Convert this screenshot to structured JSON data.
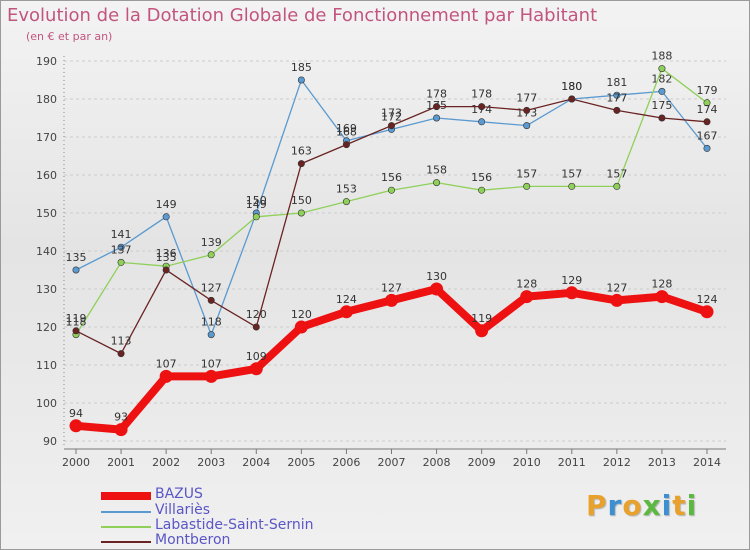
{
  "title": "Evolution de la Dotation Globale de Fonctionnement par Habitant",
  "subtitle": "(en € et par an)",
  "logo": {
    "text": "Proxiti",
    "colors": [
      "#e8a12c",
      "#3c8fd0",
      "#e8a12c",
      "#5cb840",
      "#3c8fd0",
      "#e8a12c",
      "#5cb840"
    ]
  },
  "colors": {
    "title": "#c2557e",
    "grid": "#cccccc",
    "legend_text": "#5a56c6",
    "axis_text": "#444444"
  },
  "chart_data": {
    "type": "line",
    "title": "Evolution de la Dotation Globale de Fonctionnement par Habitant",
    "subtitle": "(en € et par an)",
    "x": [
      "2000",
      "2001",
      "2002",
      "2003",
      "2004",
      "2005",
      "2006",
      "2007",
      "2008",
      "2009",
      "2010",
      "2011",
      "2012",
      "2013",
      "2014"
    ],
    "y_ticks": [
      90,
      100,
      110,
      120,
      130,
      140,
      150,
      160,
      170,
      180,
      190
    ],
    "ylim": [
      90,
      190
    ],
    "grid": "horizontal-dashed",
    "legend_position": "bottom-left",
    "series": [
      {
        "name": "BAZUS",
        "color": "#ee1111",
        "style": "thick",
        "values": [
          94,
          93,
          107,
          107,
          109,
          120,
          124,
          127,
          130,
          119,
          128,
          129,
          127,
          128,
          124
        ],
        "labels": [
          "94",
          "93",
          "107",
          "107",
          "109",
          "120",
          "124",
          "127",
          "130",
          "119",
          "128",
          "129",
          "127",
          "128",
          "124"
        ]
      },
      {
        "name": "Villariès",
        "color": "#5a9ad0",
        "style": "thin",
        "values": [
          135,
          141,
          149,
          118,
          150,
          185,
          169,
          172,
          175,
          174,
          173,
          180,
          181,
          182,
          167
        ],
        "labels": [
          "135",
          "141",
          "149",
          "118",
          "150",
          "185",
          "169",
          "172",
          "175",
          "174",
          "173",
          "180",
          "181",
          "182",
          "167"
        ]
      },
      {
        "name": "Labastide-Saint-Sernin",
        "color": "#8fd05a",
        "style": "thin",
        "values": [
          118,
          137,
          136,
          139,
          149,
          150,
          153,
          156,
          158,
          156,
          157,
          157,
          157,
          188,
          179
        ],
        "labels": [
          "118",
          "137",
          "136",
          "139",
          "149",
          "150",
          "153",
          "156",
          "158",
          "156",
          "157",
          "157",
          "157",
          "188",
          "179"
        ]
      },
      {
        "name": "Montberon",
        "color": "#6a2323",
        "style": "thin",
        "values": [
          119,
          113,
          135,
          127,
          120,
          163,
          168,
          173,
          178,
          178,
          177,
          180,
          177,
          175,
          174
        ],
        "labels": [
          "119",
          "113",
          "135",
          "127",
          "120",
          "163",
          "168",
          "173",
          "178",
          "178",
          "177",
          "180",
          "177",
          "175",
          "174"
        ]
      }
    ]
  }
}
